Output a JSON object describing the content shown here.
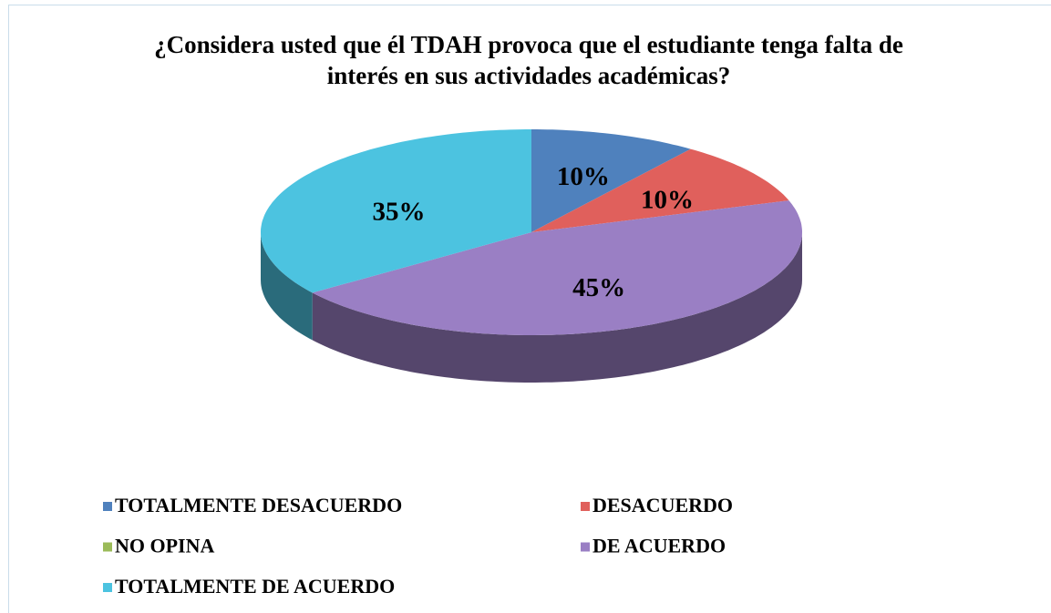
{
  "chart_data": {
    "type": "pie",
    "title": "¿Considera usted que él TDAH provoca que el estudiante tenga falta de interés en sus actividades académicas?",
    "categories": [
      "TOTALMENTE DESACUERDO",
      "DESACUERDO",
      "NO OPINA",
      "DE ACUERDO",
      "TOTALMENTE DE ACUERDO"
    ],
    "values": [
      10,
      10,
      0,
      45,
      35
    ],
    "value_labels": [
      "10%",
      "10%",
      null,
      "45%",
      "35%"
    ],
    "colors": [
      "#4f81bd",
      "#e0605c",
      "#9bbb59",
      "#9a7fc4",
      "#4cc3e0"
    ],
    "legend": "bottom"
  }
}
